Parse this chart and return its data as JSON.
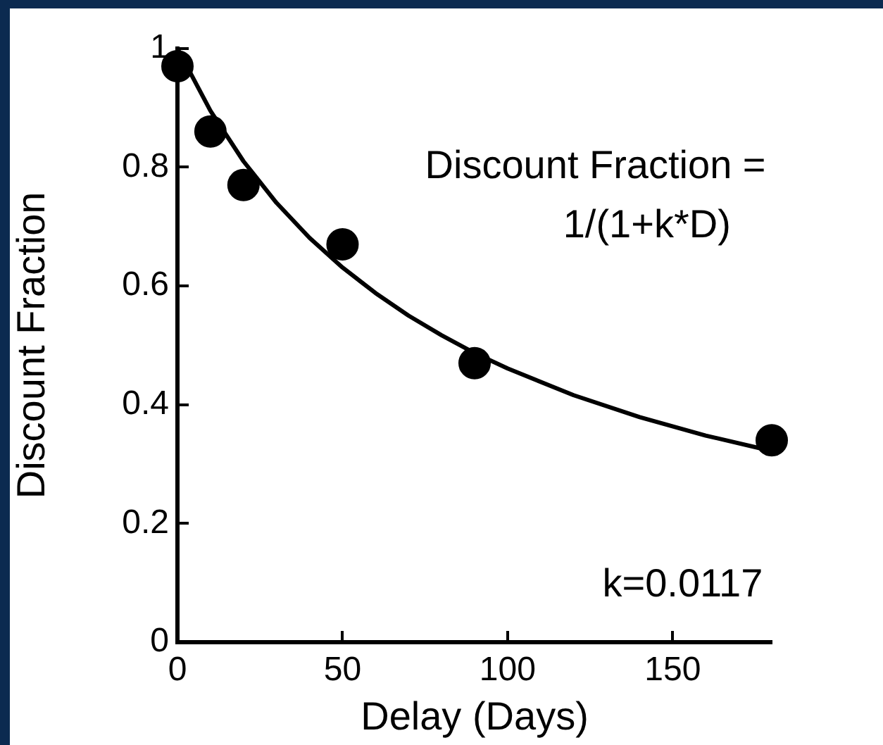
{
  "chart_data": {
    "type": "scatter",
    "xlabel": "Delay (Days)",
    "ylabel": "Discount Fraction",
    "annotations": [
      "Discount Fraction =",
      "1/(1+k*D)",
      "k=0.0117"
    ],
    "xlim": [
      0,
      180
    ],
    "xticks": [
      0,
      50,
      100,
      150
    ],
    "ylim": [
      0,
      1
    ],
    "yticks": [
      0,
      0.2,
      0.4,
      0.6,
      0.8,
      1
    ],
    "grid": false,
    "series": [
      {
        "type": "scatter",
        "color": "#000000",
        "marker": "circle",
        "x": [
          0,
          10,
          20,
          50,
          90,
          180
        ],
        "values": [
          0.97,
          0.86,
          0.77,
          0.67,
          0.47,
          0.34
        ]
      },
      {
        "type": "line",
        "color": "#000000",
        "marker": "none",
        "line_style": "solid",
        "x": [
          0,
          10,
          20,
          30,
          40,
          50,
          60,
          70,
          80,
          90,
          100,
          120,
          140,
          160,
          180
        ],
        "values": [
          1,
          0.895,
          0.81,
          0.74,
          0.681,
          0.631,
          0.588,
          0.55,
          0.517,
          0.487,
          0.461,
          0.416,
          0.379,
          0.348,
          0.322
        ]
      }
    ]
  }
}
